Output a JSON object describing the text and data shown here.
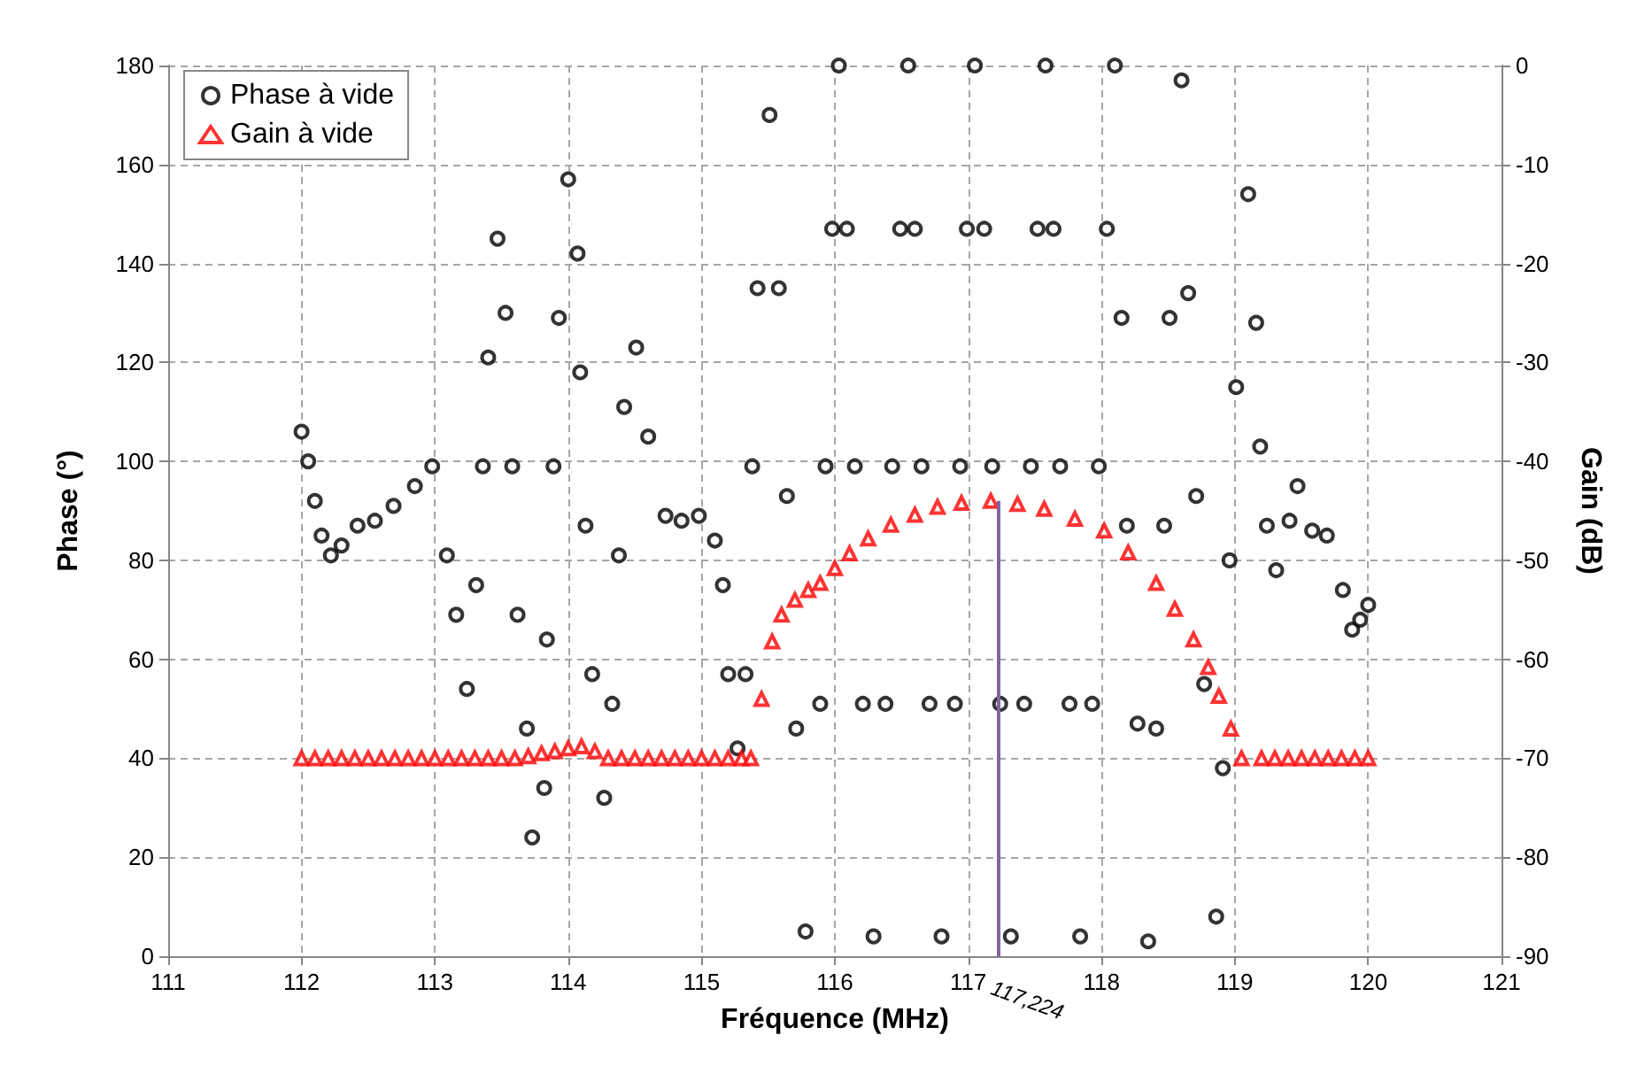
{
  "chart_data": {
    "type": "scatter",
    "xlabel": "Fréquence (MHz)",
    "ylabel": "Phase (°)",
    "y2label": "Gain (dB)",
    "xlim": [
      111,
      121
    ],
    "xticks": [
      111,
      112,
      113,
      114,
      115,
      116,
      117,
      118,
      119,
      120,
      121
    ],
    "ylim": [
      0,
      180
    ],
    "yticks": [
      0,
      20,
      40,
      60,
      80,
      100,
      120,
      140,
      160,
      180
    ],
    "y2lim": [
      -90,
      0
    ],
    "y2ticks": [
      -90,
      -80,
      -70,
      -60,
      -50,
      -40,
      -30,
      -20,
      -10,
      0
    ],
    "grid": true,
    "legend": "top left",
    "ref_lines": [
      {
        "axis": "x",
        "value": 117.224,
        "label": "117,224",
        "color": "#8064a2"
      }
    ],
    "series": [
      {
        "name": "Phase à vide",
        "color": "#000000",
        "marker": "circle",
        "x": [
          112.0,
          112.05,
          112.1,
          112.15,
          112.22,
          112.3,
          112.42,
          112.55,
          112.69,
          112.85,
          112.98,
          113.09,
          113.16,
          113.24,
          113.31,
          113.36,
          113.4,
          113.47,
          113.53,
          113.58,
          113.62,
          113.69,
          113.73,
          113.82,
          113.84,
          113.89,
          113.93,
          114.0,
          114.07,
          114.09,
          114.13,
          114.18,
          114.27,
          114.33,
          114.38,
          114.42,
          114.51,
          114.6,
          114.73,
          114.85,
          114.98,
          115.1,
          115.16,
          115.2,
          115.27,
          115.33,
          115.38,
          115.42,
          115.51,
          115.58,
          115.64,
          115.71,
          115.78,
          115.89,
          115.93,
          115.98,
          116.03,
          116.09,
          116.15,
          116.21,
          116.29,
          116.38,
          116.43,
          116.49,
          116.55,
          116.6,
          116.65,
          116.71,
          116.8,
          116.9,
          116.94,
          116.99,
          117.05,
          117.12,
          117.18,
          117.24,
          117.32,
          117.42,
          117.47,
          117.52,
          117.58,
          117.64,
          117.69,
          117.76,
          117.84,
          117.93,
          117.98,
          118.04,
          118.1,
          118.15,
          118.19,
          118.27,
          118.35,
          118.41,
          118.47,
          118.51,
          118.6,
          118.65,
          118.71,
          118.77,
          118.86,
          118.91,
          118.96,
          119.01,
          119.1,
          119.16,
          119.19,
          119.24,
          119.31,
          119.41,
          119.47,
          119.58,
          119.69,
          119.81,
          119.88,
          119.94,
          120.0
        ],
        "values": [
          106,
          100,
          92,
          85,
          81,
          83,
          87,
          88,
          91,
          95,
          99,
          81,
          69,
          54,
          75,
          99,
          121,
          145,
          130,
          99,
          69,
          46,
          24,
          34,
          64,
          99,
          129,
          157,
          142,
          118,
          87,
          57,
          32,
          51,
          81,
          111,
          123,
          105,
          89,
          88,
          89,
          84,
          75,
          57,
          42,
          57,
          99,
          135,
          170,
          135,
          93,
          46,
          5,
          51,
          99,
          147,
          180,
          147,
          99,
          51,
          4,
          51,
          99,
          147,
          180,
          147,
          99,
          51,
          4,
          51,
          99,
          147,
          180,
          147,
          99,
          51,
          4,
          51,
          99,
          147,
          180,
          147,
          99,
          51,
          4,
          51,
          99,
          147,
          180,
          129,
          87,
          47,
          3,
          46,
          87,
          129,
          177,
          134,
          93,
          55,
          8,
          38,
          80,
          115,
          154,
          128,
          103,
          87,
          78,
          88,
          95,
          86,
          85,
          74,
          66,
          68,
          71
        ]
      },
      {
        "name": "Gain à vide",
        "color": "#ff0000",
        "marker": "triangle",
        "axis": "y2",
        "x": [
          112.0,
          112.1,
          112.2,
          112.3,
          112.4,
          112.5,
          112.6,
          112.7,
          112.8,
          112.9,
          113.0,
          113.1,
          113.2,
          113.3,
          113.4,
          113.5,
          113.6,
          113.7,
          113.8,
          113.9,
          114.0,
          114.1,
          114.2,
          114.3,
          114.4,
          114.5,
          114.6,
          114.7,
          114.8,
          114.9,
          115.0,
          115.1,
          115.2,
          115.3,
          115.37,
          115.45,
          115.53,
          115.6,
          115.7,
          115.8,
          115.89,
          116.0,
          116.11,
          116.25,
          116.42,
          116.6,
          116.77,
          116.95,
          117.17,
          117.37,
          117.57,
          117.8,
          118.02,
          118.2,
          118.41,
          118.55,
          118.69,
          118.8,
          118.88,
          118.97,
          119.05,
          119.2,
          119.3,
          119.4,
          119.5,
          119.6,
          119.7,
          119.8,
          119.9,
          120.0
        ],
        "values": [
          -70,
          -70,
          -70,
          -70,
          -70,
          -70,
          -70,
          -70,
          -70,
          -70,
          -70,
          -70,
          -70,
          -70,
          -70,
          -70,
          -70,
          -69.8,
          -69.5,
          -69.3,
          -69,
          -68.8,
          -69.3,
          -70,
          -70,
          -70,
          -70,
          -70,
          -70,
          -70,
          -70,
          -70,
          -70,
          -70,
          -70,
          -64,
          -58.2,
          -55.5,
          -54,
          -53,
          -52.3,
          -50.8,
          -49.3,
          -47.8,
          -46.4,
          -45.4,
          -44.6,
          -44.2,
          -44,
          -44.3,
          -44.8,
          -45.8,
          -47,
          -49.2,
          -52.3,
          -54.9,
          -58,
          -60.8,
          -63.7,
          -67,
          -70,
          -70,
          -70,
          -70,
          -70,
          -70,
          -70,
          -70,
          -70,
          -70
        ]
      }
    ]
  }
}
